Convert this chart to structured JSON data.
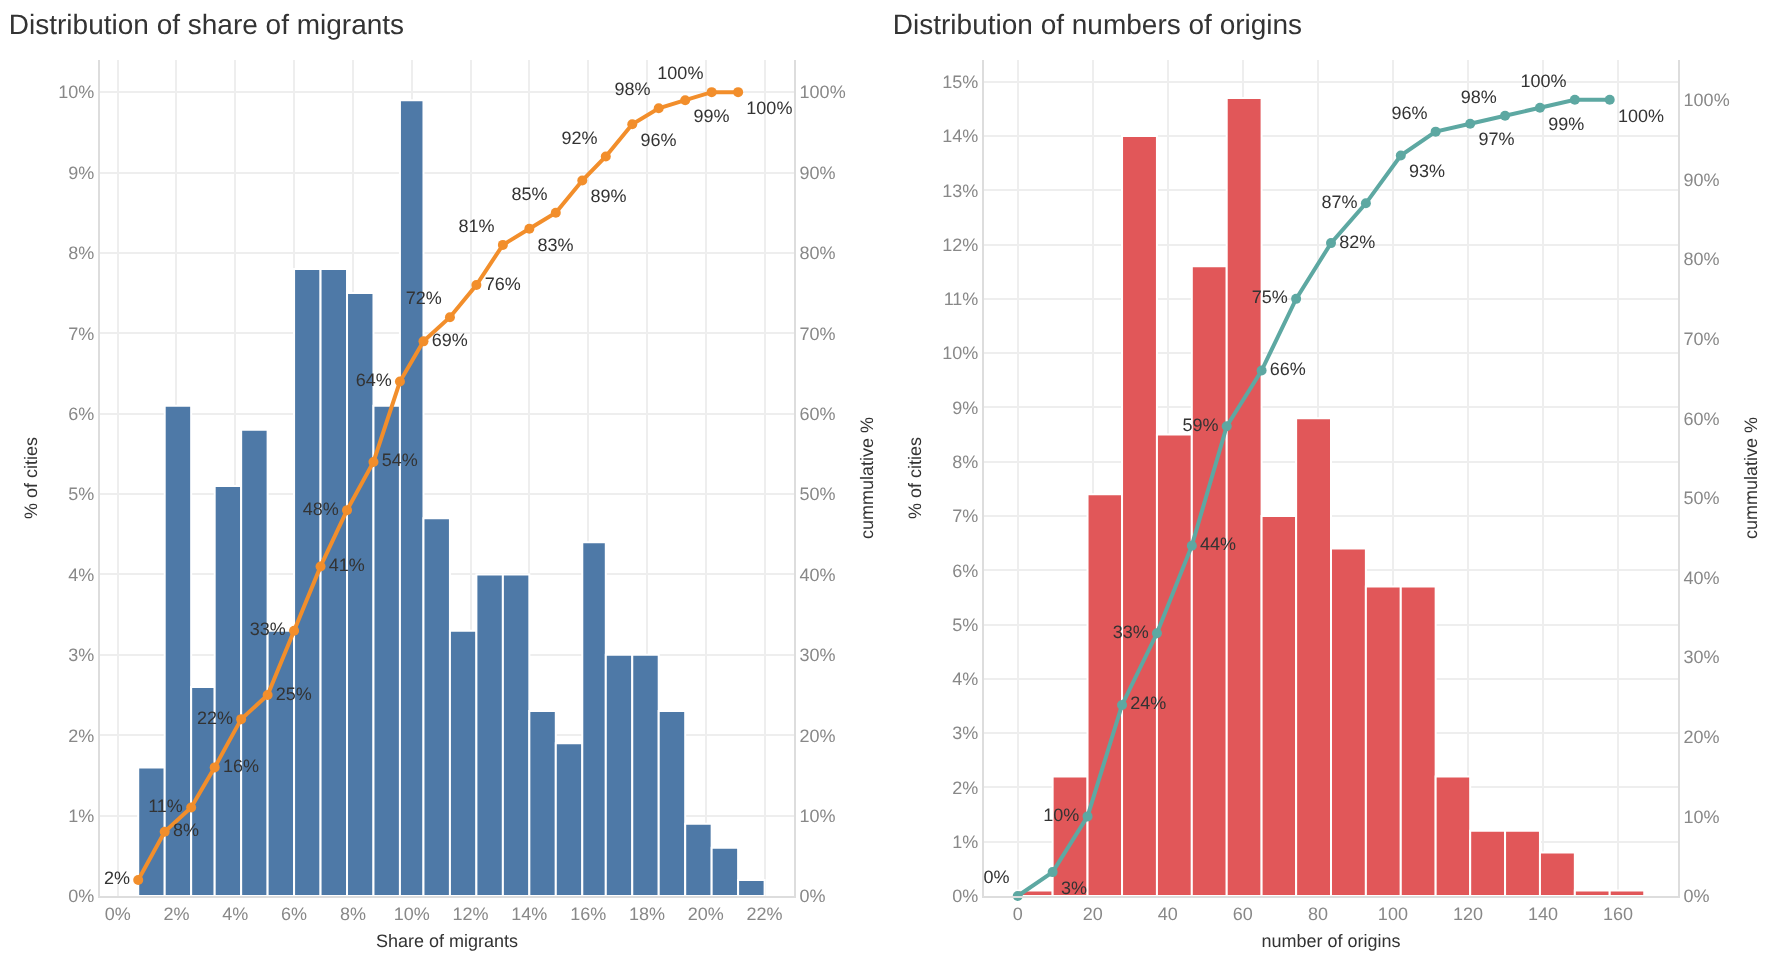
{
  "chart_data": [
    {
      "type": "histogram",
      "title": "Distribution of share of migrants",
      "xlabel": "Share of migrants",
      "ylabel": "% of cities",
      "y2label": "cummulative %",
      "grid": true,
      "marker": "circle",
      "line_style": "solid",
      "bins": [
        0.7,
        1.6,
        2.5,
        3.3,
        4.2,
        5.1,
        6.0,
        6.9,
        7.8,
        8.7,
        9.6,
        10.4,
        11.3,
        12.2,
        13.1,
        14.0,
        14.9,
        15.8,
        16.6,
        17.5,
        18.4,
        19.3,
        20.2,
        21.1,
        22.0
      ],
      "xlim": [
        -0.6,
        23
      ],
      "xticks": [
        {
          "value": 0,
          "label": "0%"
        },
        {
          "value": 2,
          "label": "2%"
        },
        {
          "value": 4,
          "label": "4%"
        },
        {
          "value": 6,
          "label": "6%"
        },
        {
          "value": 8,
          "label": "8%"
        },
        {
          "value": 10,
          "label": "10%"
        },
        {
          "value": 12,
          "label": "12%"
        },
        {
          "value": 14,
          "label": "14%"
        },
        {
          "value": 16,
          "label": "16%"
        },
        {
          "value": 18,
          "label": "18%"
        },
        {
          "value": 20,
          "label": "20%"
        },
        {
          "value": 22,
          "label": "22%"
        }
      ],
      "ylim": [
        0,
        10.4
      ],
      "yticks": [
        {
          "value": 0,
          "label": "0%"
        },
        {
          "value": 1,
          "label": "1%"
        },
        {
          "value": 2,
          "label": "2%"
        },
        {
          "value": 3,
          "label": "3%"
        },
        {
          "value": 4,
          "label": "4%"
        },
        {
          "value": 5,
          "label": "5%"
        },
        {
          "value": 6,
          "label": "6%"
        },
        {
          "value": 7,
          "label": "7%"
        },
        {
          "value": 8,
          "label": "8%"
        },
        {
          "value": 9,
          "label": "9%"
        },
        {
          "value": 10,
          "label": "10%"
        }
      ],
      "y2lim": [
        0,
        104
      ],
      "y2ticks": [
        {
          "value": 0,
          "label": "0%"
        },
        {
          "value": 10,
          "label": "10%"
        },
        {
          "value": 20,
          "label": "20%"
        },
        {
          "value": 30,
          "label": "30%"
        },
        {
          "value": 40,
          "label": "40%"
        },
        {
          "value": 50,
          "label": "50%"
        },
        {
          "value": 60,
          "label": "60%"
        },
        {
          "value": 70,
          "label": "70%"
        },
        {
          "value": 80,
          "label": "80%"
        },
        {
          "value": 90,
          "label": "90%"
        },
        {
          "value": 100,
          "label": "100%"
        }
      ],
      "series": [
        {
          "type": "histogram",
          "color": "#4e79a7",
          "values": [
            1.6,
            6.1,
            2.6,
            5.1,
            5.8,
            3.3,
            7.8,
            7.8,
            7.5,
            6.1,
            9.9,
            4.7,
            3.3,
            4.0,
            4.0,
            2.3,
            1.9,
            4.4,
            3.0,
            3.0,
            2.3,
            0.9,
            0.6,
            0.2
          ]
        },
        {
          "type": "line",
          "axis": "y2",
          "color": "#f28e2b",
          "x": [
            0.7,
            1.6,
            2.5,
            3.3,
            4.2,
            5.1,
            6.0,
            6.9,
            7.8,
            8.7,
            9.6,
            10.4,
            11.3,
            12.2,
            13.1,
            14.0,
            14.9,
            15.8,
            16.6,
            17.5,
            18.4,
            19.3,
            20.2,
            21.1
          ],
          "values": [
            2,
            8,
            11,
            16,
            22,
            25,
            33,
            41,
            48,
            54,
            64,
            69,
            72,
            76,
            81,
            83,
            85,
            89,
            92,
            96,
            98,
            99,
            100,
            100
          ],
          "value_labels": [
            "2%",
            "8%",
            "11%",
            "16%",
            "22%",
            "25%",
            "33%",
            "41%",
            "48%",
            "54%",
            "64%",
            "69%",
            "72%",
            "76%",
            "81%",
            "83%",
            "85%",
            "89%",
            "92%",
            "96%",
            "98%",
            "99%",
            "100%",
            "100%"
          ]
        }
      ]
    },
    {
      "type": "histogram",
      "title": "Distribution of numbers of origins",
      "xlabel": "number of origins",
      "ylabel": "% of cities",
      "y2label": "cummulative %",
      "grid": true,
      "marker": "circle",
      "line_style": "solid",
      "bins": [
        0,
        9.3,
        18.6,
        27.8,
        37.1,
        46.4,
        55.7,
        65.0,
        74.2,
        83.5,
        92.8,
        102.1,
        111.4,
        120.6,
        129.9,
        139.2,
        148.5,
        157.8,
        167.0
      ],
      "xlim": [
        -9,
        176
      ],
      "xticks": [
        0,
        20,
        40,
        60,
        80,
        100,
        120,
        140,
        160
      ],
      "ylim": [
        0,
        15.4
      ],
      "yticks": [
        {
          "value": 0,
          "label": "0%"
        },
        {
          "value": 1,
          "label": "1%"
        },
        {
          "value": 2,
          "label": "2%"
        },
        {
          "value": 3,
          "label": "3%"
        },
        {
          "value": 4,
          "label": "4%"
        },
        {
          "value": 5,
          "label": "5%"
        },
        {
          "value": 6,
          "label": "6%"
        },
        {
          "value": 7,
          "label": "7%"
        },
        {
          "value": 8,
          "label": "8%"
        },
        {
          "value": 9,
          "label": "9%"
        },
        {
          "value": 10,
          "label": "10%"
        },
        {
          "value": 11,
          "label": "11%"
        },
        {
          "value": 12,
          "label": "12%"
        },
        {
          "value": 13,
          "label": "13%"
        },
        {
          "value": 14,
          "label": "14%"
        },
        {
          "value": 15,
          "label": "15%"
        }
      ],
      "y2lim": [
        0,
        105
      ],
      "y2ticks": [
        {
          "value": 0,
          "label": "0%"
        },
        {
          "value": 10,
          "label": "10%"
        },
        {
          "value": 20,
          "label": "20%"
        },
        {
          "value": 30,
          "label": "30%"
        },
        {
          "value": 40,
          "label": "40%"
        },
        {
          "value": 50,
          "label": "50%"
        },
        {
          "value": 60,
          "label": "60%"
        },
        {
          "value": 70,
          "label": "70%"
        },
        {
          "value": 80,
          "label": "80%"
        },
        {
          "value": 90,
          "label": "90%"
        },
        {
          "value": 100,
          "label": "100%"
        }
      ],
      "series": [
        {
          "type": "histogram",
          "color": "#e15759",
          "values": [
            0.1,
            2.2,
            7.4,
            14.0,
            8.5,
            11.6,
            14.7,
            7.0,
            8.8,
            6.4,
            5.7,
            5.7,
            2.2,
            1.2,
            1.2,
            0.8,
            0.1,
            0.1
          ]
        },
        {
          "type": "line",
          "axis": "y2",
          "color": "#5da8a2",
          "x": [
            0,
            9.3,
            18.6,
            27.8,
            37.1,
            46.4,
            55.7,
            65.0,
            74.2,
            83.5,
            92.8,
            102.1,
            111.4,
            120.6,
            129.9,
            139.2,
            148.5,
            157.8
          ],
          "values": [
            0,
            3,
            10,
            24,
            33,
            44,
            59,
            66,
            75,
            82,
            87,
            93,
            96,
            97,
            98,
            99,
            100,
            100
          ],
          "value_labels": [
            "0%",
            "3%",
            "10%",
            "24%",
            "33%",
            "44%",
            "59%",
            "66%",
            "75%",
            "82%",
            "87%",
            "93%",
            "96%",
            "97%",
            "98%",
            "99%",
            "100%",
            "100%"
          ]
        }
      ]
    }
  ]
}
